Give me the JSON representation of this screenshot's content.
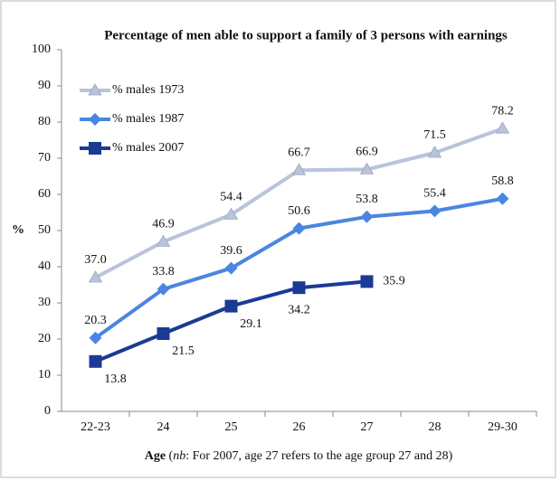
{
  "chart_data": {
    "type": "line",
    "title": "Percentage of men able to support a family of 3 persons with earnings",
    "x_label_parts": [
      "Age",
      " (",
      "nb",
      ": For 2007, age 27 refers to the age group 27 and 28)"
    ],
    "y_label": "%",
    "categories": [
      "22-23",
      "24",
      "25",
      "26",
      "27",
      "28",
      "29-30"
    ],
    "series": [
      {
        "name": "% males 1973",
        "color": "#b9c3da",
        "marker": "triangle",
        "values": [
          37.0,
          46.9,
          54.4,
          66.7,
          66.9,
          71.5,
          78.2
        ],
        "value_labels": [
          "37.0",
          "46.9",
          "54.4",
          "66.7",
          "66.9",
          "71.5",
          "78.2"
        ]
      },
      {
        "name": "% males 1987",
        "color": "#4a86e0",
        "marker": "diamond",
        "values": [
          20.3,
          33.8,
          39.6,
          50.6,
          53.8,
          55.4,
          58.8
        ],
        "value_labels": [
          "20.3",
          "33.8",
          "39.6",
          "50.6",
          "53.8",
          "55.4",
          "58.8"
        ]
      },
      {
        "name": "% males 2007",
        "color": "#1b3a94",
        "marker": "square",
        "values": [
          13.8,
          21.5,
          29.1,
          34.2,
          35.9,
          null,
          null
        ],
        "value_labels": [
          "13.8",
          "21.5",
          "29.1",
          "34.2",
          "35.9",
          null,
          null
        ]
      }
    ],
    "ylim": [
      0,
      100
    ],
    "yticks": [
      0,
      10,
      20,
      30,
      40,
      50,
      60,
      70,
      80,
      90,
      100
    ],
    "legend": "top-left",
    "grid": false
  }
}
